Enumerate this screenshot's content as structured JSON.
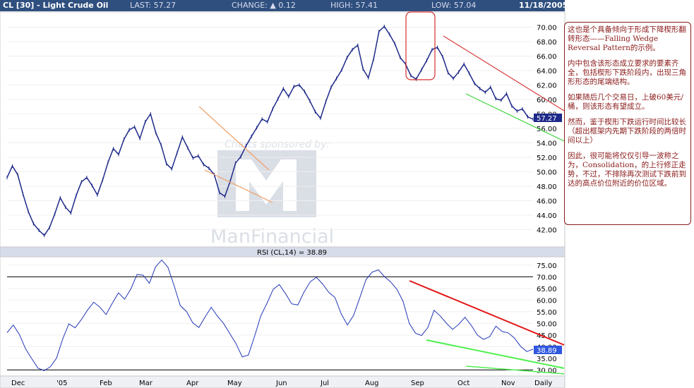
{
  "header": {
    "title": "CL [30] - Light Crude Oil",
    "last": "LAST: 57.27",
    "change": "CHANGE: ▲ 0.12",
    "high": "HIGH: 57.41",
    "low": "LOW: 57.04",
    "date": "11/18/2005"
  },
  "watermark": {
    "top_text": "Charts sponsored by:",
    "brand": "ManFinancial"
  },
  "annotation": {
    "paragraphs": [
      "这也是个具备倾向于形成下降楔形翻转形态——Falling Wedge Reversal Pattern的示例。",
      "内中包含该形态成立要求的要素齐全，包括楔形下跌阶段内，出现三角形形态的尾端结构。",
      "如果随后几个交易日，上破60美元/桶，则该形态有望成立。",
      "然而，鉴于楔形下跌运行时间比较长（超出框架内先期下跌阶段的两倍时间以上）",
      "因此，很可能将仅仅引导一波称之为，Consolidation，的上行修正走势，不过，不排除再次测试下跌前到达的高点价位附近的价位区域。"
    ]
  },
  "chart_data": [
    {
      "type": "line",
      "name": "Light Crude Oil",
      "x_labels": [
        "Dec",
        "'05",
        "Feb",
        "Mar",
        "Apr",
        "May",
        "Jun",
        "Jul",
        "Aug",
        "Sep",
        "Oct",
        "Nov",
        "Daily"
      ],
      "y_ticks": [
        42,
        44,
        46,
        48,
        50,
        52,
        54,
        56,
        58,
        60,
        62,
        64,
        66,
        68,
        70
      ],
      "y_tick_labels": [
        "42.00",
        "44.00",
        "46.00",
        "48.00",
        "50.00",
        "52.00",
        "54.00",
        "56.00",
        "58.00",
        "60.00",
        "62.00",
        "64.00",
        "66.00",
        "68.00",
        "70.00"
      ],
      "ylim": [
        40,
        72
      ],
      "last_value": 57.27,
      "last_label": "57.27",
      "series": [
        {
          "values": [
            49.2,
            50.8,
            49.6,
            46.9,
            44.5,
            42.8,
            41.9,
            41.2,
            42.3,
            44.2,
            46.4,
            45.1,
            44.3,
            46.7,
            48.6,
            49.2,
            48.1,
            46.8,
            48.9,
            51.3,
            53.2,
            52.4,
            54.5,
            55.8,
            56.2,
            54.6,
            56.9,
            58.0,
            55.4,
            53.7,
            51.1,
            50.4,
            52.6,
            54.8,
            53.3,
            51.9,
            52.2,
            51.0,
            50.5,
            49.6,
            47.1,
            46.6,
            48.7,
            51.2,
            52.1,
            53.6,
            54.9,
            56.1,
            57.3,
            56.9,
            58.7,
            60.1,
            61.5,
            60.4,
            61.8,
            62.0,
            61.1,
            59.8,
            58.3,
            57.4,
            59.7,
            61.7,
            62.9,
            64.1,
            65.8,
            66.9,
            67.5,
            64.2,
            63.0,
            65.6,
            69.4,
            70.1,
            69.0,
            67.7,
            65.8,
            64.9,
            63.3,
            62.8,
            64.1,
            65.4,
            66.9,
            67.2,
            65.9,
            63.7,
            62.9,
            63.8,
            64.9,
            63.6,
            62.2,
            61.5,
            61.0,
            61.7,
            60.1,
            59.9,
            60.8,
            59.1,
            58.4,
            58.7,
            57.6,
            57.27
          ]
        }
      ]
    },
    {
      "type": "line",
      "name": "RSI",
      "title": "RSI (CL,14) = 38.89",
      "y_ticks": [
        30,
        35,
        40,
        45,
        50,
        55,
        60,
        65,
        70,
        75
      ],
      "y_tick_labels": [
        "30.00",
        "35.00",
        "40.00",
        "45.00",
        "50.00",
        "55.00",
        "60.00",
        "65.00",
        "70.00",
        "75.00"
      ],
      "ylim": [
        28,
        78
      ],
      "last_value": 38.89,
      "last_label": "38.89",
      "series": [
        {
          "values": [
            46.0,
            49.3,
            45.2,
            39.0,
            34.8,
            30.8,
            29.7,
            31.4,
            35.1,
            43.4,
            49.8,
            48.1,
            51.6,
            55.7,
            59.1,
            57.0,
            53.8,
            58.6,
            63.1,
            60.4,
            64.8,
            71.0,
            70.7,
            67.2,
            74.3,
            77.2,
            74.1,
            66.2,
            57.6,
            55.1,
            50.3,
            48.2,
            52.8,
            56.9,
            53.1,
            49.9,
            45.6,
            41.3,
            35.6,
            36.4,
            44.5,
            53.2,
            58.6,
            64.6,
            66.7,
            62.8,
            58.4,
            57.9,
            63.5,
            67.9,
            69.8,
            66.9,
            63.3,
            61.1,
            54.1,
            49.3,
            53.4,
            61.0,
            68.8,
            72.0,
            73.0,
            70.1,
            67.8,
            64.6,
            59.5,
            50.0,
            45.8,
            44.8,
            48.2,
            55.6,
            53.2,
            50.1,
            47.4,
            49.6,
            52.6,
            49.2,
            45.0,
            43.1,
            44.3,
            48.8,
            46.5,
            45.9,
            43.7,
            40.1,
            37.9,
            38.9
          ]
        }
      ]
    }
  ]
}
